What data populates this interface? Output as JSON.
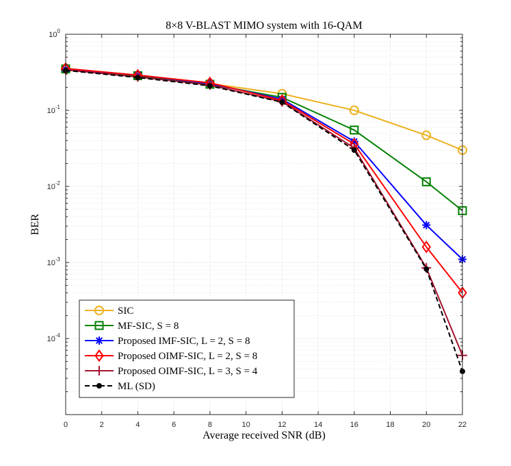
{
  "chart_data": {
    "type": "line",
    "title": "8×8 V-BLAST MIMO system with 16-QAM",
    "xlabel": "Average received SNR (dB)",
    "ylabel": "BER",
    "xlim": [
      0,
      22
    ],
    "ylim": [
      1e-05,
      1
    ],
    "yscale": "log",
    "grid": true,
    "legend_position": "bottom-left",
    "x_ticks": [
      0,
      2,
      4,
      6,
      8,
      10,
      12,
      14,
      16,
      18,
      20,
      22
    ],
    "y_ticks": [
      {
        "value": 1,
        "base": "10",
        "exp": "0"
      },
      {
        "value": 0.1,
        "base": "10",
        "exp": "-1"
      },
      {
        "value": 0.01,
        "base": "10",
        "exp": "-2"
      },
      {
        "value": 0.001,
        "base": "10",
        "exp": "-3"
      },
      {
        "value": 0.0001,
        "base": "10",
        "exp": "-4"
      }
    ],
    "series": [
      {
        "name": "SIC",
        "color": "#EDB120",
        "marker": "circle",
        "dash": "solid",
        "x": [
          0,
          4,
          8,
          12,
          16,
          20,
          22
        ],
        "y": [
          0.35,
          0.285,
          0.225,
          0.165,
          0.1,
          0.047,
          0.03
        ]
      },
      {
        "name": "MF-SIC, S = 8",
        "color": "#008000",
        "marker": "square",
        "dash": "solid",
        "x": [
          0,
          4,
          8,
          12,
          16,
          20,
          22
        ],
        "y": [
          0.35,
          0.285,
          0.22,
          0.148,
          0.055,
          0.0115,
          0.0048
        ]
      },
      {
        "name": "Proposed IMF-SIC, L = 2, S = 8",
        "color": "#0000FF",
        "marker": "asterisk",
        "dash": "solid",
        "x": [
          0,
          4,
          8,
          12,
          16,
          20,
          22
        ],
        "y": [
          0.35,
          0.29,
          0.225,
          0.14,
          0.039,
          0.0031,
          0.0011
        ]
      },
      {
        "name": "Proposed OIMF-SIC, L = 2, S = 8",
        "color": "#FF0000",
        "marker": "diamond",
        "dash": "solid",
        "x": [
          0,
          4,
          8,
          12,
          16,
          20,
          22
        ],
        "y": [
          0.355,
          0.29,
          0.23,
          0.135,
          0.036,
          0.0016,
          0.0004
        ]
      },
      {
        "name": "Proposed OIMF-SIC, L = 3, S = 4",
        "color": "#A2142F",
        "marker": "plus",
        "dash": "solid",
        "x": [
          0,
          4,
          8,
          12,
          16,
          20,
          22
        ],
        "y": [
          0.34,
          0.275,
          0.215,
          0.13,
          0.032,
          0.00085,
          6e-05
        ]
      },
      {
        "name": "ML (SD)",
        "color": "#000000",
        "marker": "dot",
        "dash": "dashed",
        "x": [
          0,
          4,
          8,
          12,
          16,
          20,
          22
        ],
        "y": [
          0.335,
          0.27,
          0.21,
          0.128,
          0.03,
          0.00082,
          3.7e-05
        ]
      }
    ]
  }
}
